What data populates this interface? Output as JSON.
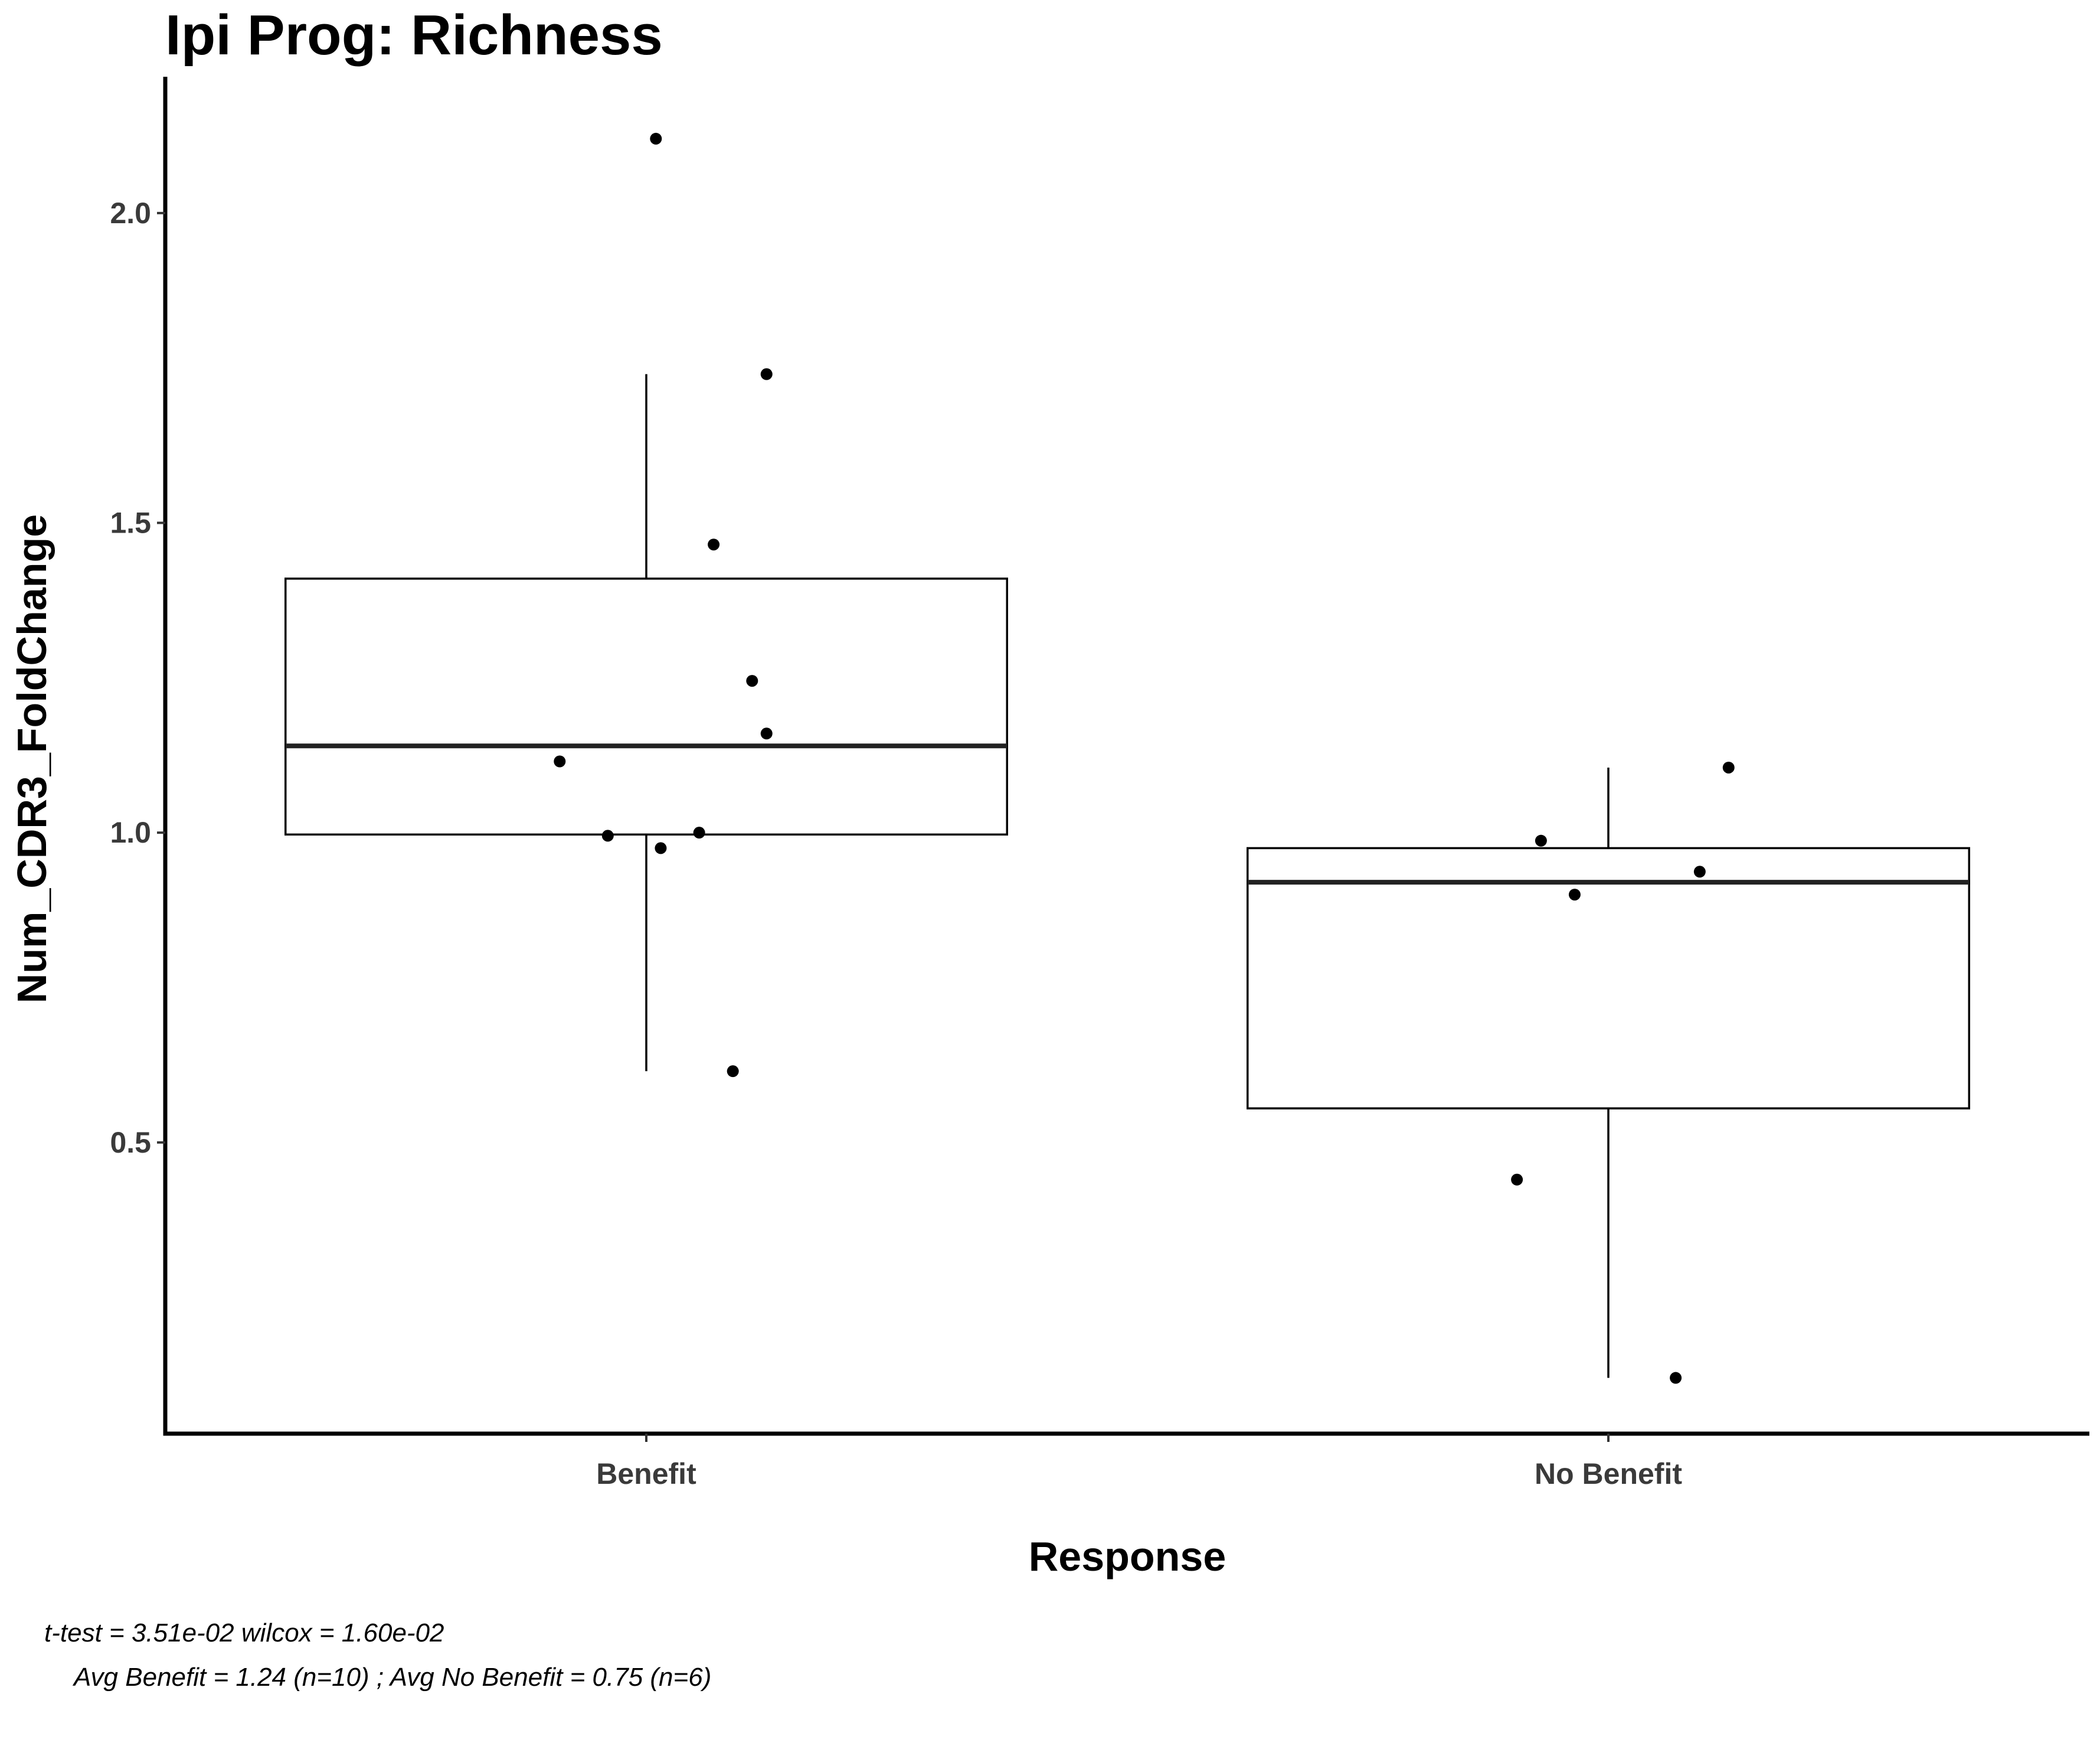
{
  "chart_data": {
    "type": "box",
    "title": "Ipi Prog: Richness",
    "xlabel": "Response",
    "ylabel": "Num_CDR3_FoldChange",
    "ylim": [
      0.03,
      2.22
    ],
    "yticks": [
      0.5,
      1.0,
      1.5,
      2.0
    ],
    "ytick_labels": [
      "0.5",
      "1.0",
      "1.5",
      "2.0"
    ],
    "categories": [
      "Benefit",
      "No Benefit"
    ],
    "grid": false,
    "boxes": [
      {
        "category": "Benefit",
        "whisker_low": 0.615,
        "q1": 0.997,
        "median": 1.14,
        "q3": 1.41,
        "whisker_high": 1.74,
        "points": [
          {
            "x_offset": -0.09,
            "y": 1.115
          },
          {
            "x_offset": -0.04,
            "y": 0.995
          },
          {
            "x_offset": 0.015,
            "y": 0.975
          },
          {
            "x_offset": 0.055,
            "y": 1.0
          },
          {
            "x_offset": 0.11,
            "y": 1.245
          },
          {
            "x_offset": 0.125,
            "y": 1.16
          },
          {
            "x_offset": 0.07,
            "y": 1.465
          },
          {
            "x_offset": 0.125,
            "y": 1.74
          },
          {
            "x_offset": 0.01,
            "y": 2.12
          },
          {
            "x_offset": 0.09,
            "y": 0.615
          }
        ]
      },
      {
        "category": "No Benefit",
        "whisker_low": 0.12,
        "q1": 0.555,
        "median": 0.92,
        "q3": 0.975,
        "whisker_high": 1.105,
        "points": [
          {
            "x_offset": 0.125,
            "y": 1.105
          },
          {
            "x_offset": -0.07,
            "y": 0.987
          },
          {
            "x_offset": 0.095,
            "y": 0.937
          },
          {
            "x_offset": -0.035,
            "y": 0.9
          },
          {
            "x_offset": -0.095,
            "y": 0.44
          },
          {
            "x_offset": 0.07,
            "y": 0.12
          }
        ]
      }
    ]
  },
  "caption": {
    "line1": "t-test = 3.51e-02 wilcox = 1.60e-02",
    "line2": "Avg Benefit = 1.24 (n=10) ;  Avg No Benefit = 0.75 (n=6)"
  }
}
